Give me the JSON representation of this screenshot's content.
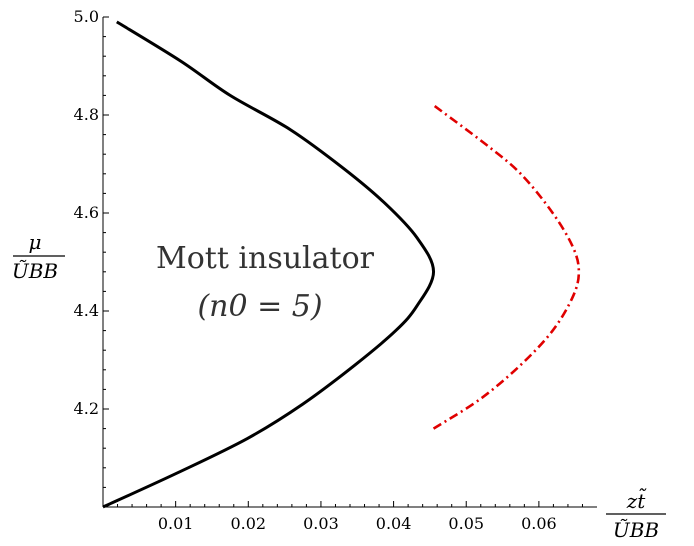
{
  "chart_data": {
    "type": "line",
    "title": "",
    "xlabel": {
      "num": "zt̃",
      "den": "ŨBB"
    },
    "ylabel": {
      "num": "μ",
      "den": "ŨBB"
    },
    "xlim": [
      0,
      0.068
    ],
    "ylim": [
      4.0,
      5.0
    ],
    "x_ticks": [
      0.01,
      0.02,
      0.03,
      0.04,
      0.05,
      0.06
    ],
    "x_tick_labels": [
      "0.01",
      "0.02",
      "0.03",
      "0.04",
      "0.05",
      "0.06"
    ],
    "y_ticks": [
      4.2,
      4.4,
      4.6,
      4.8,
      5.0
    ],
    "y_tick_labels": [
      "4.2",
      "4.4",
      "4.6",
      "4.8",
      "5.0"
    ],
    "grid": false,
    "annotations": [
      "Mott insulator",
      "(n0 = 5)"
    ],
    "series": [
      {
        "color": "#000000",
        "style": "solid",
        "points": [
          [
            0.0,
            4.0
          ],
          [
            0.0103,
            4.07
          ],
          [
            0.0199,
            4.14
          ],
          [
            0.0275,
            4.21
          ],
          [
            0.0347,
            4.29
          ],
          [
            0.0403,
            4.36
          ],
          [
            0.0432,
            4.41
          ],
          [
            0.0455,
            4.48
          ],
          [
            0.0432,
            4.55
          ],
          [
            0.0388,
            4.62
          ],
          [
            0.0332,
            4.69
          ],
          [
            0.0258,
            4.77
          ],
          [
            0.0175,
            4.84
          ],
          [
            0.0107,
            4.91
          ],
          [
            0.0019,
            4.99
          ]
        ]
      },
      {
        "color": "#e00000",
        "style": "dashdot",
        "points": [
          [
            0.0455,
            4.16
          ],
          [
            0.0519,
            4.22
          ],
          [
            0.0575,
            4.29
          ],
          [
            0.0619,
            4.36
          ],
          [
            0.0647,
            4.43
          ],
          [
            0.0655,
            4.48
          ],
          [
            0.0647,
            4.53
          ],
          [
            0.0619,
            4.6
          ],
          [
            0.0575,
            4.68
          ],
          [
            0.0527,
            4.74
          ],
          [
            0.0455,
            4.82
          ]
        ]
      }
    ]
  }
}
